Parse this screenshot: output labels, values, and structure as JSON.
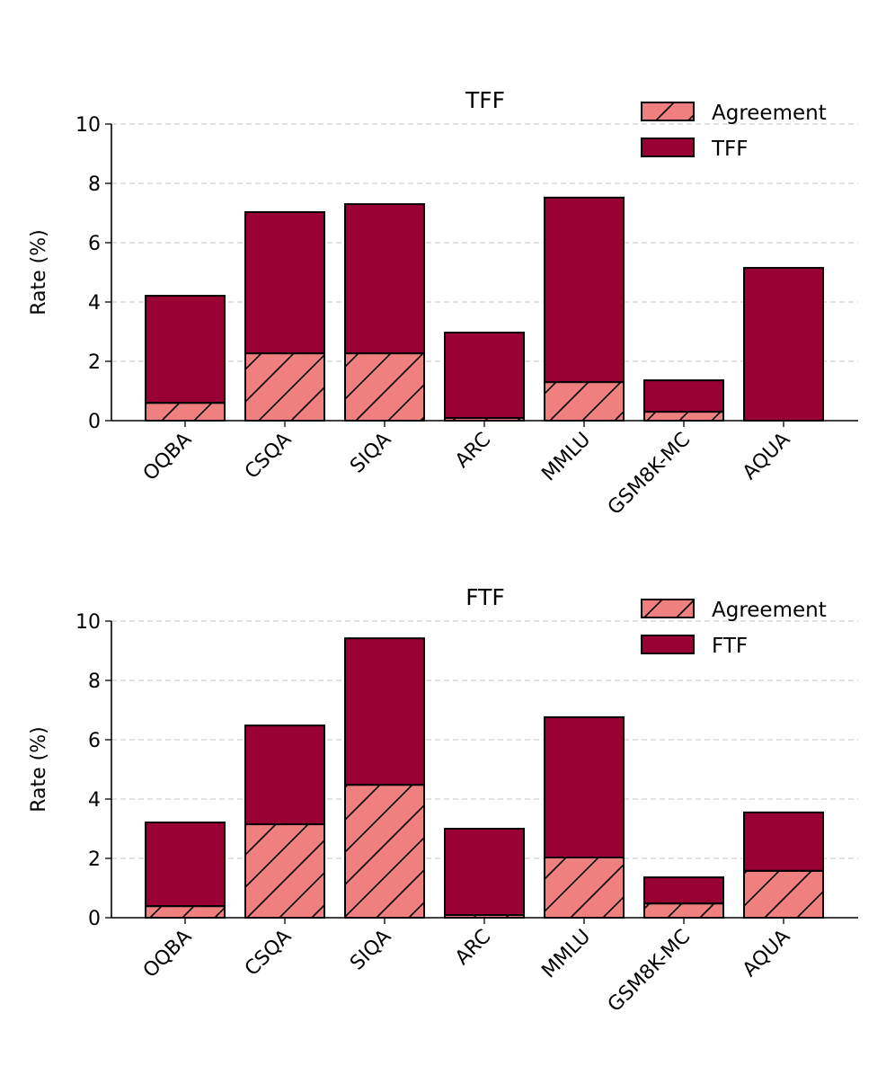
{
  "chart_data": [
    {
      "type": "bar",
      "title": "TFF",
      "ylabel": "Rate (%)",
      "xlabel": "",
      "ylim": [
        0,
        10
      ],
      "yticks": [
        "0",
        "2",
        "4",
        "6",
        "8",
        "10"
      ],
      "grid": "y dashed",
      "legend_position": "top-right",
      "categories": [
        "OQBA",
        "CSQA",
        "SIQA",
        "ARC",
        "MMLU",
        "GSM8K-MC",
        "AQUA"
      ],
      "series": [
        {
          "name": "Agreement",
          "color": "#F08080",
          "hatch": "/",
          "values": [
            0.6,
            2.27,
            2.27,
            0.09,
            1.3,
            0.3,
            0.0
          ]
        },
        {
          "name": "TFF",
          "color": "#990033",
          "values": [
            4.21,
            7.03,
            7.3,
            2.97,
            7.52,
            1.36,
            5.15
          ]
        }
      ]
    },
    {
      "type": "bar",
      "title": "FTF",
      "ylabel": "Rate (%)",
      "xlabel": "",
      "ylim": [
        0,
        10
      ],
      "yticks": [
        "0",
        "2",
        "4",
        "6",
        "8",
        "10"
      ],
      "grid": "y dashed",
      "legend_position": "top-right",
      "categories": [
        "OQBA",
        "CSQA",
        "SIQA",
        "ARC",
        "MMLU",
        "GSM8K-MC",
        "AQUA"
      ],
      "series": [
        {
          "name": "Agreement",
          "color": "#F08080",
          "hatch": "/",
          "values": [
            0.39,
            3.15,
            4.48,
            0.09,
            2.03,
            0.48,
            1.58
          ]
        },
        {
          "name": "FTF",
          "color": "#990033",
          "values": [
            3.21,
            6.48,
            9.42,
            3.0,
            6.76,
            1.36,
            3.55
          ]
        }
      ]
    }
  ]
}
